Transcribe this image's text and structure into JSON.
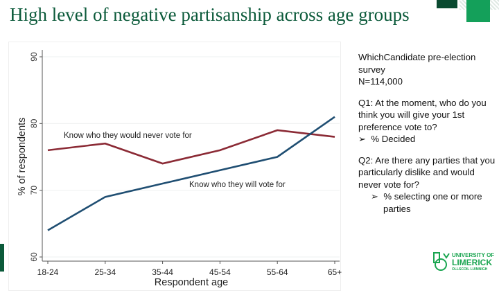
{
  "slide": {
    "title": "High level of negative partisanship across age groups",
    "side_text": {
      "survey": "WhichCandidate pre-election survey",
      "n": "N=114,000",
      "q1": "Q1: At the moment, who do you think you will give your 1st preference vote to?",
      "q1_bullet": "% Decided",
      "q2": "Q2: Are there any parties that you particularly dislike and would never vote for?",
      "q2_bullet": "% selecting one or more parties",
      "bullet_symbol": "➢"
    },
    "logo": {
      "line1": "UNIVERSITY OF",
      "line2": "LIMERICK",
      "line3": "OLLSCOIL LUIMNIGH"
    },
    "colors": {
      "title": "#0b5a3a",
      "brand_green": "#1aa550"
    }
  },
  "chart_data": {
    "type": "line",
    "categories": [
      "18-24",
      "25-34",
      "35-44",
      "45-54",
      "55-64",
      "65+"
    ],
    "series": [
      {
        "name": "Know who they would never vote for",
        "values": [
          76,
          77,
          74,
          76,
          79,
          78
        ],
        "color": "#8b2a35"
      },
      {
        "name": "Know who they will vote for",
        "values": [
          64,
          69,
          71,
          73,
          75,
          81
        ],
        "color": "#1f4e72"
      }
    ],
    "xlabel": "Respondent age",
    "ylabel": "% of respondents",
    "ylim": [
      60,
      90
    ],
    "yticks": [
      "60",
      "70",
      "80",
      "90"
    ],
    "grid": true,
    "legend": "inline labels"
  }
}
